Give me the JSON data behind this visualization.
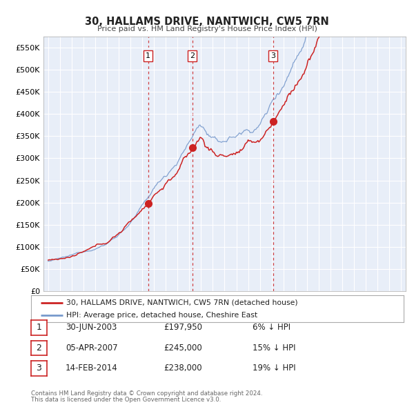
{
  "title": "30, HALLAMS DRIVE, NANTWICH, CW5 7RN",
  "subtitle": "Price paid vs. HM Land Registry's House Price Index (HPI)",
  "legend_line1": "30, HALLAMS DRIVE, NANTWICH, CW5 7RN (detached house)",
  "legend_line2": "HPI: Average price, detached house, Cheshire East",
  "transactions": [
    {
      "num": 1,
      "date": "30-JUN-2003",
      "date_val": 2003.496,
      "price": 197950,
      "price_str": "£197,950",
      "pct": "6%",
      "dir": "↓"
    },
    {
      "num": 2,
      "date": "05-APR-2007",
      "date_val": 2007.261,
      "price": 245000,
      "price_str": "£245,000",
      "pct": "15%",
      "dir": "↓"
    },
    {
      "num": 3,
      "date": "14-FEB-2014",
      "date_val": 2014.119,
      "price": 238000,
      "price_str": "£238,000",
      "pct": "19%",
      "dir": "↓"
    }
  ],
  "footer_line1": "Contains HM Land Registry data © Crown copyright and database right 2024.",
  "footer_line2": "This data is licensed under the Open Government Licence v3.0.",
  "red_line_color": "#cc2222",
  "blue_line_color": "#7799cc",
  "background_color": "#ffffff",
  "plot_bg_color": "#e8eef8",
  "grid_color": "#ffffff",
  "vline_color": "#cc2222",
  "marker_color": "#cc2222",
  "ylim": [
    0,
    575000
  ],
  "yticks": [
    0,
    50000,
    100000,
    150000,
    200000,
    250000,
    300000,
    350000,
    400000,
    450000,
    500000,
    550000
  ],
  "xlim_start": 1994.6,
  "xlim_end": 2025.4,
  "xticks": [
    1995,
    1996,
    1997,
    1998,
    1999,
    2000,
    2001,
    2002,
    2003,
    2004,
    2005,
    2006,
    2007,
    2008,
    2009,
    2010,
    2011,
    2012,
    2013,
    2014,
    2015,
    2016,
    2017,
    2018,
    2019,
    2020,
    2021,
    2022,
    2023,
    2024,
    2025
  ]
}
